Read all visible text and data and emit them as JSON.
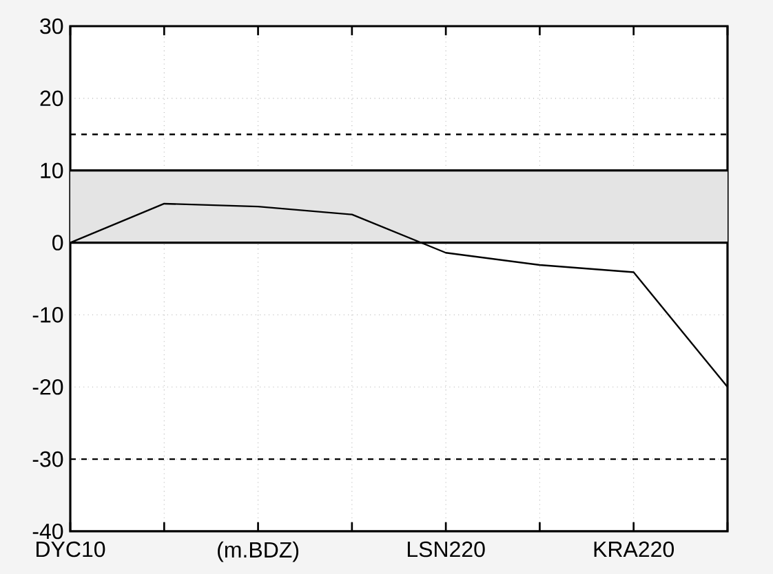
{
  "chart_data": {
    "type": "line",
    "categories": [
      "DYC10",
      null,
      "(m.BDZ)",
      null,
      "LSN220",
      null,
      "KRA220",
      null
    ],
    "series": [
      {
        "color": "#000000",
        "values": [
          0,
          5.4,
          5.0,
          3.9,
          -1.4,
          -3.1,
          -4.1,
          -20
        ]
      }
    ],
    "ylim": [
      -40,
      30
    ],
    "yticks": [
      -40,
      -30,
      -20,
      -10,
      0,
      10,
      20,
      30
    ],
    "grid": true,
    "marker": "none",
    "line_style": "solid",
    "ref_lines": [
      {
        "axis": "y",
        "value": 15,
        "line_style": "dashed"
      },
      {
        "axis": "y",
        "value": -30,
        "line_style": "dashed"
      }
    ],
    "bands": [
      {
        "axis": "y",
        "from": 0,
        "to": 10,
        "color": "#e4e4e4"
      }
    ]
  }
}
